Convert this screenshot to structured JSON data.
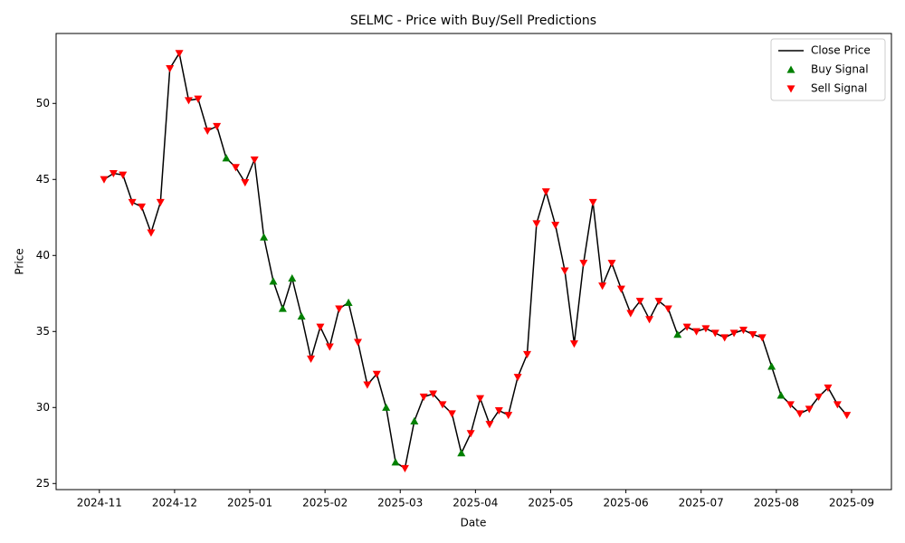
{
  "chart_data": {
    "type": "line",
    "title": "SELMC - Price with Buy/Sell Predictions",
    "x_label": "Date",
    "y_label": "Price",
    "x": [
      "2024-11",
      "2024-11",
      "2024-11",
      "2024-11",
      "2024-11",
      "2024-11",
      "2024-11",
      "2024-11",
      "2024-12",
      "2024-12",
      "2024-12",
      "2024-12",
      "2024-12",
      "2024-12",
      "2024-12",
      "2024-12",
      "2025-01",
      "2025-01",
      "2025-01",
      "2025-01",
      "2025-01",
      "2025-01",
      "2025-01",
      "2025-01",
      "2025-02",
      "2025-02",
      "2025-02",
      "2025-02",
      "2025-02",
      "2025-02",
      "2025-02",
      "2025-02",
      "2025-03",
      "2025-03",
      "2025-03",
      "2025-03",
      "2025-03",
      "2025-03",
      "2025-03",
      "2025-03",
      "2025-04",
      "2025-04",
      "2025-04",
      "2025-04",
      "2025-04",
      "2025-04",
      "2025-04",
      "2025-04",
      "2025-05",
      "2025-05",
      "2025-05",
      "2025-05",
      "2025-05",
      "2025-05",
      "2025-05",
      "2025-05",
      "2025-06",
      "2025-06",
      "2025-06",
      "2025-06",
      "2025-06",
      "2025-06",
      "2025-06",
      "2025-06",
      "2025-07",
      "2025-07",
      "2025-07",
      "2025-07",
      "2025-07",
      "2025-07",
      "2025-07",
      "2025-07",
      "2025-08",
      "2025-08",
      "2025-08",
      "2025-08",
      "2025-08",
      "2025-08",
      "2025-08",
      "2025-08"
    ],
    "series": [
      {
        "name": "Close Price",
        "type": "line",
        "color": "#000000",
        "values": [
          45.0,
          45.4,
          45.3,
          43.5,
          43.2,
          41.5,
          43.5,
          52.3,
          53.3,
          50.2,
          50.3,
          48.2,
          48.5,
          46.4,
          45.8,
          44.8,
          46.3,
          41.2,
          38.3,
          36.5,
          38.5,
          36.0,
          33.2,
          35.3,
          34.0,
          36.5,
          36.9,
          34.3,
          31.5,
          32.2,
          30.0,
          26.4,
          26.0,
          29.1,
          30.7,
          30.9,
          30.2,
          29.6,
          27.0,
          28.3,
          30.6,
          28.9,
          29.8,
          29.5,
          32.0,
          33.5,
          42.1,
          44.2,
          42.0,
          39.0,
          34.2,
          39.5,
          43.5,
          38.0,
          39.5,
          37.8,
          36.2,
          37.0,
          35.8,
          37.0,
          36.5,
          34.8,
          35.3,
          35.0,
          35.2,
          34.9,
          34.6,
          34.9,
          35.1,
          34.8,
          34.6,
          32.7,
          30.8,
          30.2,
          29.6,
          29.9,
          30.7,
          31.3,
          30.2,
          29.5
        ]
      },
      {
        "name": "Buy Signal",
        "type": "scatter",
        "marker": "up",
        "color": "#008000",
        "values": [
          null,
          null,
          null,
          null,
          null,
          null,
          null,
          null,
          null,
          null,
          null,
          null,
          null,
          46.4,
          null,
          null,
          null,
          41.2,
          38.3,
          36.5,
          38.5,
          36.0,
          null,
          null,
          null,
          null,
          36.9,
          null,
          null,
          null,
          30.0,
          26.4,
          null,
          29.1,
          null,
          null,
          null,
          null,
          27.0,
          null,
          null,
          null,
          null,
          null,
          null,
          null,
          null,
          null,
          null,
          null,
          null,
          null,
          null,
          null,
          null,
          null,
          null,
          null,
          null,
          null,
          null,
          34.8,
          null,
          null,
          null,
          null,
          null,
          null,
          null,
          null,
          null,
          32.7,
          30.8,
          null,
          null,
          null,
          null,
          null,
          null,
          null
        ]
      },
      {
        "name": "Sell Signal",
        "type": "scatter",
        "marker": "down",
        "color": "#ff0000",
        "values": [
          45.0,
          45.4,
          45.3,
          43.5,
          43.2,
          41.5,
          43.5,
          52.3,
          53.3,
          50.2,
          50.3,
          48.2,
          48.5,
          null,
          45.8,
          44.8,
          46.3,
          null,
          null,
          null,
          null,
          null,
          33.2,
          35.3,
          34.0,
          36.5,
          null,
          34.3,
          31.5,
          32.2,
          null,
          null,
          26.0,
          null,
          30.7,
          30.9,
          30.2,
          29.6,
          null,
          28.3,
          30.6,
          28.9,
          29.8,
          29.5,
          32.0,
          33.5,
          42.1,
          44.2,
          42.0,
          39.0,
          34.2,
          39.5,
          43.5,
          38.0,
          39.5,
          37.8,
          36.2,
          37.0,
          35.8,
          37.0,
          36.5,
          null,
          35.3,
          35.0,
          35.2,
          34.9,
          34.6,
          34.9,
          35.1,
          34.8,
          34.6,
          null,
          null,
          30.2,
          29.6,
          29.9,
          30.7,
          31.3,
          30.2,
          29.5
        ]
      }
    ],
    "xticks": [
      "2024-11",
      "2024-12",
      "2025-01",
      "2025-02",
      "2025-03",
      "2025-04",
      "2025-05",
      "2025-06",
      "2025-07",
      "2025-08",
      "2025-09"
    ],
    "ylim": [
      24.6,
      54.6
    ],
    "yticks": [
      25,
      30,
      35,
      40,
      45,
      50
    ],
    "grid": false,
    "legend": "upper right"
  }
}
